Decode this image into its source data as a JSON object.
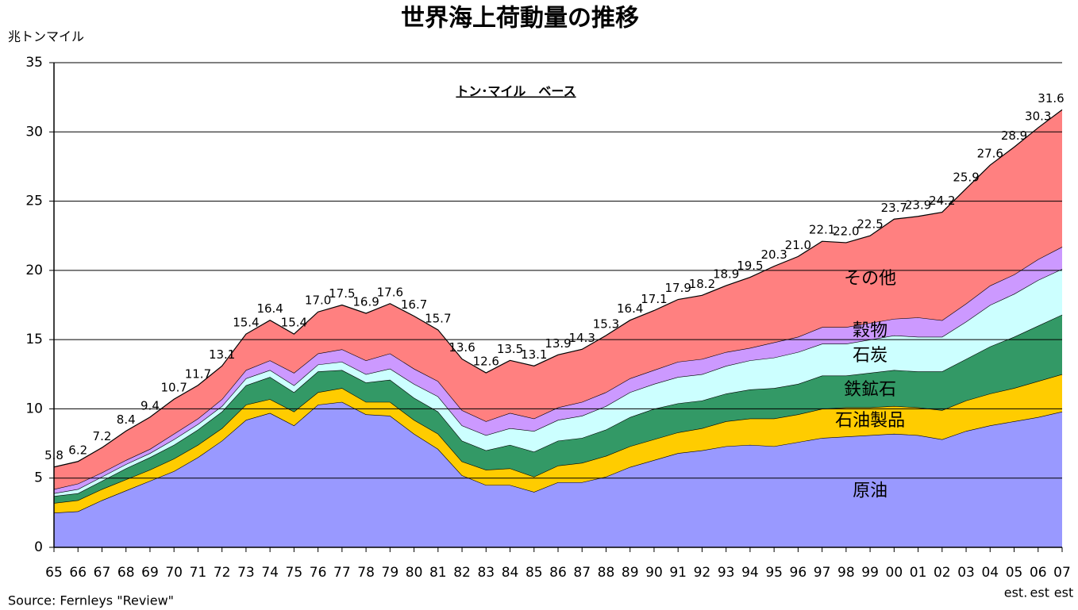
{
  "chart_data": {
    "type": "stacked_area",
    "title": "世界海上荷動量の推移",
    "y_label": "兆トンマイル",
    "subtitle": "トン･マイル　ベース",
    "source": "Source: Fernleys \"Review\"",
    "categories": [
      "65",
      "66",
      "67",
      "68",
      "69",
      "70",
      "71",
      "72",
      "73",
      "74",
      "75",
      "76",
      "77",
      "78",
      "79",
      "80",
      "81",
      "82",
      "83",
      "84",
      "85",
      "86",
      "87",
      "88",
      "89",
      "90",
      "91",
      "92",
      "93",
      "94",
      "95",
      "96",
      "97",
      "98",
      "99",
      "00",
      "01",
      "02",
      "03",
      "04",
      "05",
      "06",
      "07"
    ],
    "sublabels": [
      null,
      null,
      null,
      null,
      null,
      null,
      null,
      null,
      null,
      null,
      null,
      null,
      null,
      null,
      null,
      null,
      null,
      null,
      null,
      null,
      null,
      null,
      null,
      null,
      null,
      null,
      null,
      null,
      null,
      null,
      null,
      null,
      null,
      null,
      null,
      null,
      null,
      null,
      null,
      null,
      "est.",
      "est",
      "est"
    ],
    "series": [
      {
        "name": "原油",
        "color": "#9999ff",
        "values": [
          2.5,
          2.6,
          3.4,
          4.1,
          4.8,
          5.5,
          6.5,
          7.7,
          9.2,
          9.7,
          8.8,
          10.3,
          10.5,
          9.6,
          9.5,
          8.2,
          7.1,
          5.2,
          4.5,
          4.5,
          4.0,
          4.7,
          4.7,
          5.1,
          5.8,
          6.3,
          6.8,
          7.0,
          7.3,
          7.4,
          7.3,
          7.6,
          7.9,
          8.0,
          8.1,
          8.2,
          8.1,
          7.8,
          8.4,
          8.8,
          9.1,
          9.4,
          9.8
        ]
      },
      {
        "name": "石油製品",
        "color": "#ffcc00",
        "values": [
          0.7,
          0.8,
          0.8,
          0.8,
          0.8,
          0.9,
          0.9,
          0.9,
          1.1,
          1.0,
          1.0,
          0.9,
          1.0,
          0.9,
          1.0,
          1.0,
          1.1,
          1.0,
          1.1,
          1.2,
          1.1,
          1.2,
          1.4,
          1.5,
          1.5,
          1.5,
          1.5,
          1.6,
          1.8,
          1.9,
          2.0,
          2.0,
          2.1,
          2.1,
          2.0,
          2.0,
          2.0,
          2.1,
          2.2,
          2.3,
          2.4,
          2.6,
          2.7
        ]
      },
      {
        "name": "鉄鉱石",
        "color": "#339966",
        "values": [
          0.5,
          0.5,
          0.6,
          0.8,
          0.9,
          1.0,
          1.1,
          1.2,
          1.4,
          1.6,
          1.4,
          1.5,
          1.3,
          1.4,
          1.6,
          1.6,
          1.6,
          1.5,
          1.4,
          1.7,
          1.8,
          1.8,
          1.8,
          1.9,
          2.1,
          2.2,
          2.1,
          2.0,
          2.0,
          2.1,
          2.2,
          2.2,
          2.4,
          2.3,
          2.5,
          2.6,
          2.6,
          2.8,
          3.0,
          3.4,
          3.7,
          4.0,
          4.3
        ]
      },
      {
        "name": "石炭",
        "color": "#ccffff",
        "values": [
          0.2,
          0.3,
          0.3,
          0.3,
          0.3,
          0.4,
          0.4,
          0.4,
          0.5,
          0.5,
          0.5,
          0.5,
          0.6,
          0.6,
          0.8,
          1.0,
          1.1,
          1.1,
          1.1,
          1.2,
          1.5,
          1.5,
          1.6,
          1.7,
          1.8,
          1.8,
          1.9,
          1.9,
          2.0,
          2.1,
          2.2,
          2.3,
          2.3,
          2.3,
          2.4,
          2.5,
          2.5,
          2.5,
          2.7,
          3.0,
          3.1,
          3.3,
          3.3
        ]
      },
      {
        "name": "穀物",
        "color": "#cc99ff",
        "values": [
          0.3,
          0.4,
          0.3,
          0.3,
          0.3,
          0.4,
          0.4,
          0.5,
          0.6,
          0.7,
          0.9,
          0.8,
          0.9,
          1.0,
          1.1,
          1.1,
          1.1,
          1.1,
          1.0,
          1.1,
          0.9,
          0.9,
          1.0,
          1.0,
          1.0,
          1.0,
          1.1,
          1.1,
          1.0,
          0.9,
          1.1,
          1.1,
          1.2,
          1.2,
          1.2,
          1.2,
          1.4,
          1.2,
          1.3,
          1.4,
          1.4,
          1.5,
          1.6
        ]
      },
      {
        "name": "その他",
        "color": "#ff8080",
        "values": [
          1.6,
          1.6,
          1.8,
          2.1,
          2.3,
          2.5,
          2.4,
          2.4,
          2.6,
          2.9,
          2.8,
          3.0,
          3.2,
          3.4,
          3.6,
          3.8,
          3.7,
          3.7,
          3.5,
          3.8,
          3.8,
          3.8,
          3.8,
          4.1,
          4.2,
          4.3,
          4.5,
          4.6,
          4.8,
          5.1,
          5.5,
          5.8,
          6.2,
          6.1,
          6.3,
          7.2,
          7.3,
          7.8,
          8.3,
          8.7,
          9.2,
          9.5,
          9.9
        ]
      }
    ],
    "total_values": [
      5.8,
      6.2,
      7.2,
      8.4,
      9.4,
      10.7,
      11.7,
      13.1,
      15.4,
      16.4,
      15.4,
      17.0,
      17.5,
      16.9,
      17.6,
      16.7,
      15.7,
      13.6,
      12.6,
      13.5,
      13.1,
      13.9,
      14.3,
      15.3,
      16.4,
      17.1,
      17.9,
      18.2,
      18.9,
      19.5,
      20.3,
      21.0,
      22.1,
      22.0,
      22.5,
      23.7,
      23.9,
      24.2,
      25.9,
      27.6,
      28.9,
      30.3,
      31.6
    ],
    "total_labels": [
      "5.8",
      "6.2",
      "7.2",
      "8.4",
      "9.4",
      "10.7",
      "11.7",
      "13.1",
      "15.4",
      "16.4",
      "15.4",
      "17.0",
      "17.5",
      "16.9",
      "17.6",
      "16.7",
      "15.7",
      "13.6",
      "12.6",
      "13.5",
      "13.1",
      "13.9",
      "14.3",
      "15.3",
      "16.4",
      "17.1",
      "17.9",
      "18.2",
      "18.9",
      "19.5",
      "20.3",
      "21.0",
      "22.1",
      "22.0",
      "22.5",
      "23.7",
      "23.9",
      "24.2",
      "25.9",
      "27.6",
      "28.9",
      "30.3",
      "31.6"
    ],
    "ylim": [
      0,
      35
    ],
    "yticks": [
      0,
      5,
      10,
      15,
      20,
      25,
      30,
      35
    ],
    "grid": true
  }
}
